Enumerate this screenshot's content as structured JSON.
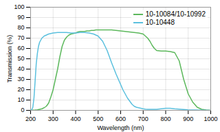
{
  "chart_data": {
    "type": "line",
    "xlabel": "Wavelength (nm)",
    "ylabel": "Transmission (%)",
    "xlim": [
      200,
      1000
    ],
    "ylim": [
      0,
      100
    ],
    "xticks": [
      200,
      300,
      400,
      500,
      600,
      700,
      800,
      900,
      1000
    ],
    "yticks": [
      0,
      10,
      20,
      30,
      40,
      50,
      60,
      70,
      80,
      90,
      100
    ],
    "grid": true,
    "legend": "upper right",
    "series": [
      {
        "name": "10-10084/10-10992",
        "color": "#5cb85c",
        "x": [
          200,
          220,
          230,
          240,
          250,
          260,
          270,
          280,
          290,
          300,
          310,
          320,
          330,
          340,
          350,
          360,
          370,
          380,
          390,
          400,
          410,
          420,
          430,
          440,
          450,
          460,
          470,
          480,
          490,
          500,
          520,
          540,
          560,
          580,
          600,
          620,
          640,
          660,
          680,
          700,
          710,
          720,
          730,
          740,
          750,
          760,
          780,
          800,
          820,
          840,
          860,
          880,
          900,
          920,
          940,
          960,
          980,
          1000
        ],
        "values": [
          0,
          0.3,
          0.5,
          1,
          1.5,
          2.5,
          4,
          7,
          13,
          20,
          30,
          40,
          52,
          62,
          68,
          71,
          73,
          74,
          74.5,
          75,
          76,
          76.5,
          76.5,
          76.5,
          77,
          77,
          77.5,
          77.5,
          78,
          78,
          78,
          78,
          78,
          77.5,
          77,
          76.5,
          76,
          75.5,
          75,
          74,
          72,
          70,
          67,
          63,
          60,
          58,
          57.5,
          57.5,
          57,
          56,
          48,
          30,
          16,
          8,
          3,
          1,
          0.3,
          0
        ]
      },
      {
        "name": "10-10448",
        "color": "#5bc0de",
        "x": [
          200,
          205,
          210,
          215,
          220,
          225,
          230,
          235,
          240,
          245,
          250,
          260,
          270,
          280,
          290,
          300,
          320,
          340,
          360,
          380,
          400,
          420,
          440,
          460,
          480,
          500,
          520,
          540,
          560,
          580,
          590,
          600,
          610,
          620,
          630,
          640,
          650,
          660,
          670,
          680,
          690,
          700,
          710,
          720,
          730,
          740,
          750,
          760,
          780,
          800,
          820,
          840,
          900,
          1000
        ],
        "values": [
          0,
          0.5,
          3,
          12,
          28,
          45,
          55,
          62,
          66,
          68,
          70,
          72,
          73,
          74,
          74.5,
          75,
          75.5,
          75.5,
          75.5,
          75,
          75,
          75.5,
          75.5,
          75,
          74,
          72,
          67,
          58,
          46,
          35,
          30,
          25,
          20,
          16,
          12,
          9,
          6,
          4,
          3,
          2.5,
          2,
          1.5,
          1.2,
          1,
          1,
          1,
          1,
          1,
          1.5,
          2,
          2,
          1.5,
          0.5,
          0
        ]
      }
    ]
  }
}
